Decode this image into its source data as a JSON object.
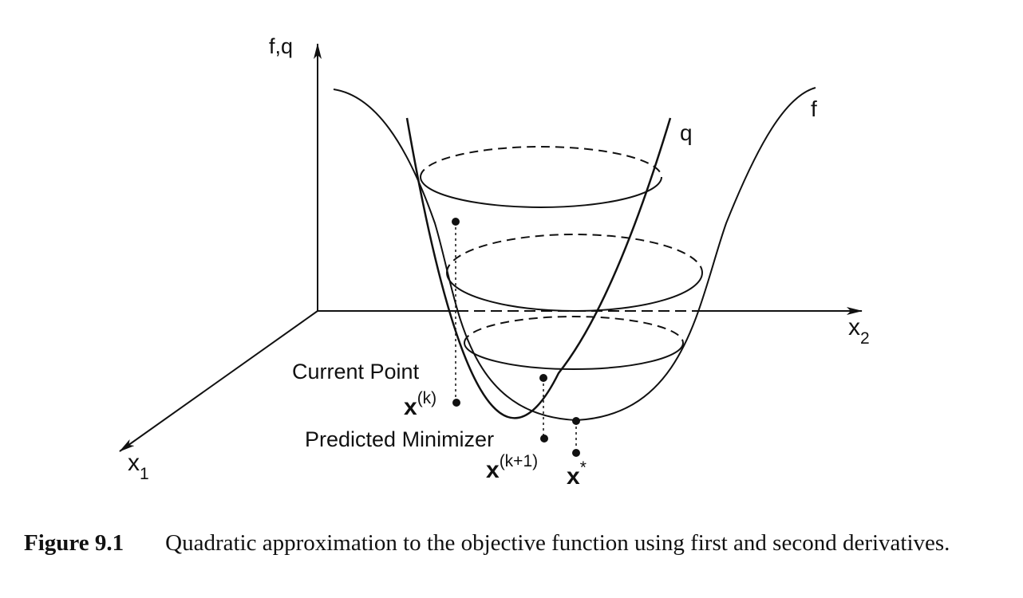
{
  "figure": {
    "axes": {
      "vertical": "f,q",
      "x1_base": "x",
      "x1_sub": "1",
      "x2_base": "x",
      "x2_sub": "2"
    },
    "curves": {
      "f_label": "f",
      "q_label": "q"
    },
    "points": {
      "current_label": "Current Point",
      "current_base": "x",
      "current_sup": "(k)",
      "predicted_label": "Predicted Minimizer",
      "predicted_base": "x",
      "predicted_sup": "(k+1)",
      "optimum_base": "x",
      "optimum_sup": "*"
    }
  },
  "caption": {
    "label": "Figure 9.1",
    "text": "Quadratic approximation to the objective function using first and second derivatives."
  }
}
